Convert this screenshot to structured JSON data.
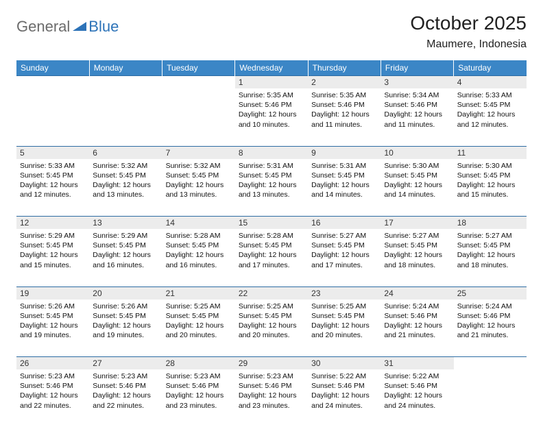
{
  "logo": {
    "part1": "General",
    "part2": "Blue"
  },
  "title": "October 2025",
  "location": "Maumere, Indonesia",
  "colors": {
    "header_bg": "#3b86c6",
    "header_text": "#ffffff",
    "daynum_bg": "#ececec",
    "border": "#2d6ca3",
    "logo_gray": "#6b6b6b",
    "logo_blue": "#2d73b8"
  },
  "weekdays": [
    "Sunday",
    "Monday",
    "Tuesday",
    "Wednesday",
    "Thursday",
    "Friday",
    "Saturday"
  ],
  "weeks": [
    [
      null,
      null,
      null,
      {
        "n": "1",
        "sr": "Sunrise: 5:35 AM",
        "ss": "Sunset: 5:46 PM",
        "d1": "Daylight: 12 hours",
        "d2": "and 10 minutes."
      },
      {
        "n": "2",
        "sr": "Sunrise: 5:35 AM",
        "ss": "Sunset: 5:46 PM",
        "d1": "Daylight: 12 hours",
        "d2": "and 11 minutes."
      },
      {
        "n": "3",
        "sr": "Sunrise: 5:34 AM",
        "ss": "Sunset: 5:46 PM",
        "d1": "Daylight: 12 hours",
        "d2": "and 11 minutes."
      },
      {
        "n": "4",
        "sr": "Sunrise: 5:33 AM",
        "ss": "Sunset: 5:45 PM",
        "d1": "Daylight: 12 hours",
        "d2": "and 12 minutes."
      }
    ],
    [
      {
        "n": "5",
        "sr": "Sunrise: 5:33 AM",
        "ss": "Sunset: 5:45 PM",
        "d1": "Daylight: 12 hours",
        "d2": "and 12 minutes."
      },
      {
        "n": "6",
        "sr": "Sunrise: 5:32 AM",
        "ss": "Sunset: 5:45 PM",
        "d1": "Daylight: 12 hours",
        "d2": "and 13 minutes."
      },
      {
        "n": "7",
        "sr": "Sunrise: 5:32 AM",
        "ss": "Sunset: 5:45 PM",
        "d1": "Daylight: 12 hours",
        "d2": "and 13 minutes."
      },
      {
        "n": "8",
        "sr": "Sunrise: 5:31 AM",
        "ss": "Sunset: 5:45 PM",
        "d1": "Daylight: 12 hours",
        "d2": "and 13 minutes."
      },
      {
        "n": "9",
        "sr": "Sunrise: 5:31 AM",
        "ss": "Sunset: 5:45 PM",
        "d1": "Daylight: 12 hours",
        "d2": "and 14 minutes."
      },
      {
        "n": "10",
        "sr": "Sunrise: 5:30 AM",
        "ss": "Sunset: 5:45 PM",
        "d1": "Daylight: 12 hours",
        "d2": "and 14 minutes."
      },
      {
        "n": "11",
        "sr": "Sunrise: 5:30 AM",
        "ss": "Sunset: 5:45 PM",
        "d1": "Daylight: 12 hours",
        "d2": "and 15 minutes."
      }
    ],
    [
      {
        "n": "12",
        "sr": "Sunrise: 5:29 AM",
        "ss": "Sunset: 5:45 PM",
        "d1": "Daylight: 12 hours",
        "d2": "and 15 minutes."
      },
      {
        "n": "13",
        "sr": "Sunrise: 5:29 AM",
        "ss": "Sunset: 5:45 PM",
        "d1": "Daylight: 12 hours",
        "d2": "and 16 minutes."
      },
      {
        "n": "14",
        "sr": "Sunrise: 5:28 AM",
        "ss": "Sunset: 5:45 PM",
        "d1": "Daylight: 12 hours",
        "d2": "and 16 minutes."
      },
      {
        "n": "15",
        "sr": "Sunrise: 5:28 AM",
        "ss": "Sunset: 5:45 PM",
        "d1": "Daylight: 12 hours",
        "d2": "and 17 minutes."
      },
      {
        "n": "16",
        "sr": "Sunrise: 5:27 AM",
        "ss": "Sunset: 5:45 PM",
        "d1": "Daylight: 12 hours",
        "d2": "and 17 minutes."
      },
      {
        "n": "17",
        "sr": "Sunrise: 5:27 AM",
        "ss": "Sunset: 5:45 PM",
        "d1": "Daylight: 12 hours",
        "d2": "and 18 minutes."
      },
      {
        "n": "18",
        "sr": "Sunrise: 5:27 AM",
        "ss": "Sunset: 5:45 PM",
        "d1": "Daylight: 12 hours",
        "d2": "and 18 minutes."
      }
    ],
    [
      {
        "n": "19",
        "sr": "Sunrise: 5:26 AM",
        "ss": "Sunset: 5:45 PM",
        "d1": "Daylight: 12 hours",
        "d2": "and 19 minutes."
      },
      {
        "n": "20",
        "sr": "Sunrise: 5:26 AM",
        "ss": "Sunset: 5:45 PM",
        "d1": "Daylight: 12 hours",
        "d2": "and 19 minutes."
      },
      {
        "n": "21",
        "sr": "Sunrise: 5:25 AM",
        "ss": "Sunset: 5:45 PM",
        "d1": "Daylight: 12 hours",
        "d2": "and 20 minutes."
      },
      {
        "n": "22",
        "sr": "Sunrise: 5:25 AM",
        "ss": "Sunset: 5:45 PM",
        "d1": "Daylight: 12 hours",
        "d2": "and 20 minutes."
      },
      {
        "n": "23",
        "sr": "Sunrise: 5:25 AM",
        "ss": "Sunset: 5:45 PM",
        "d1": "Daylight: 12 hours",
        "d2": "and 20 minutes."
      },
      {
        "n": "24",
        "sr": "Sunrise: 5:24 AM",
        "ss": "Sunset: 5:46 PM",
        "d1": "Daylight: 12 hours",
        "d2": "and 21 minutes."
      },
      {
        "n": "25",
        "sr": "Sunrise: 5:24 AM",
        "ss": "Sunset: 5:46 PM",
        "d1": "Daylight: 12 hours",
        "d2": "and 21 minutes."
      }
    ],
    [
      {
        "n": "26",
        "sr": "Sunrise: 5:23 AM",
        "ss": "Sunset: 5:46 PM",
        "d1": "Daylight: 12 hours",
        "d2": "and 22 minutes."
      },
      {
        "n": "27",
        "sr": "Sunrise: 5:23 AM",
        "ss": "Sunset: 5:46 PM",
        "d1": "Daylight: 12 hours",
        "d2": "and 22 minutes."
      },
      {
        "n": "28",
        "sr": "Sunrise: 5:23 AM",
        "ss": "Sunset: 5:46 PM",
        "d1": "Daylight: 12 hours",
        "d2": "and 23 minutes."
      },
      {
        "n": "29",
        "sr": "Sunrise: 5:23 AM",
        "ss": "Sunset: 5:46 PM",
        "d1": "Daylight: 12 hours",
        "d2": "and 23 minutes."
      },
      {
        "n": "30",
        "sr": "Sunrise: 5:22 AM",
        "ss": "Sunset: 5:46 PM",
        "d1": "Daylight: 12 hours",
        "d2": "and 24 minutes."
      },
      {
        "n": "31",
        "sr": "Sunrise: 5:22 AM",
        "ss": "Sunset: 5:46 PM",
        "d1": "Daylight: 12 hours",
        "d2": "and 24 minutes."
      },
      null
    ]
  ]
}
